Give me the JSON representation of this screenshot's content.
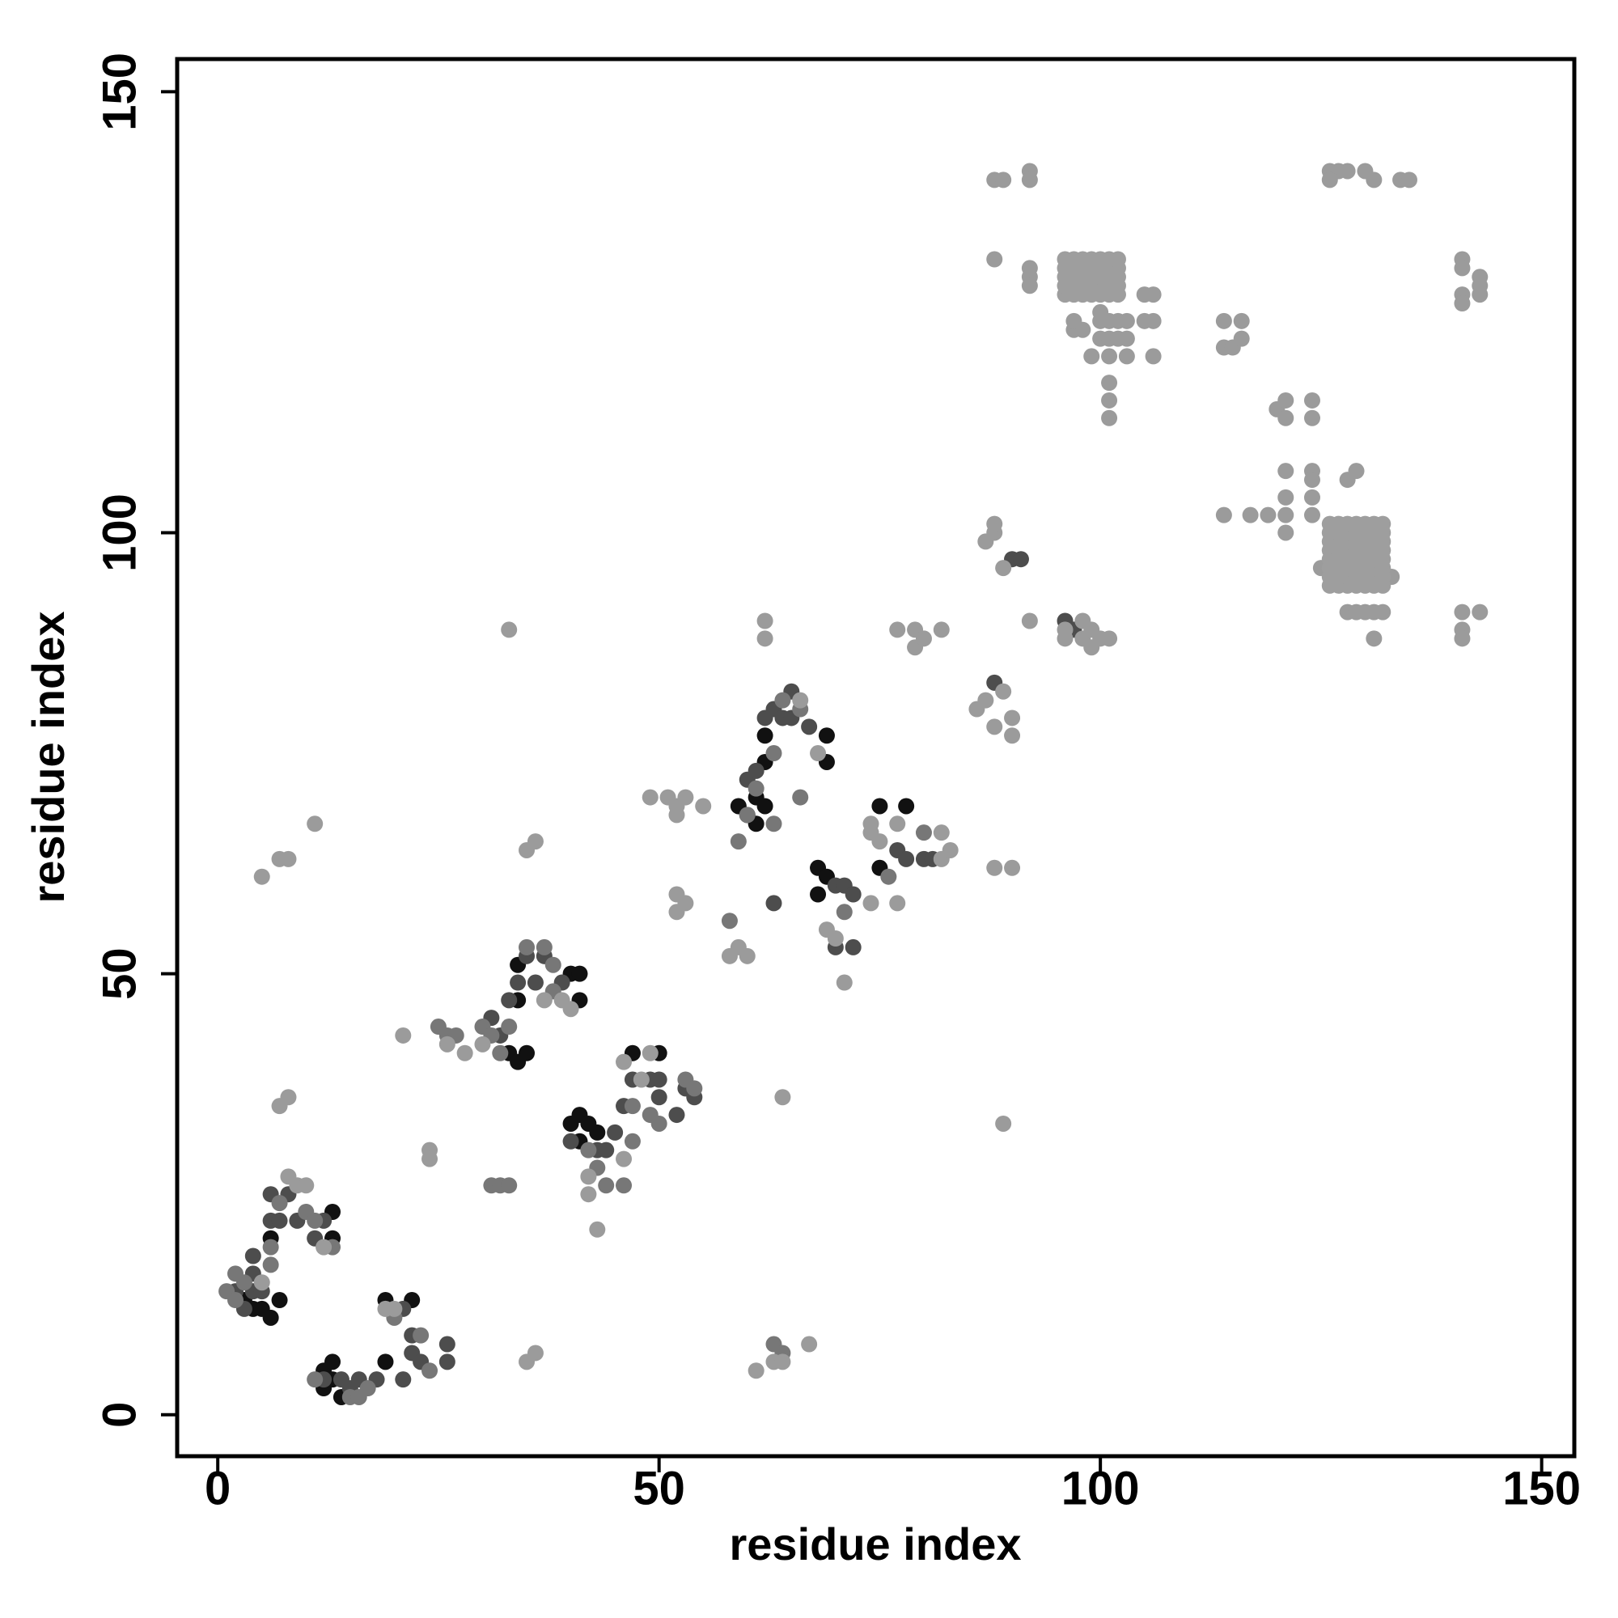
{
  "chart_data": {
    "type": "scatter",
    "xlabel": "residue index",
    "ylabel": "residue index",
    "xlim": [
      -4.6,
      153.7
    ],
    "ylim": [
      -4.7,
      153.7
    ],
    "xticks": [
      0,
      50,
      100,
      150
    ],
    "yticks": [
      0,
      50,
      100,
      150
    ],
    "series": [
      {
        "color": "#111111",
        "x": [
          4,
          5,
          6,
          3,
          7,
          12,
          13,
          13,
          12,
          14,
          19,
          22,
          19,
          6,
          13,
          13,
          40,
          41,
          42,
          43,
          41,
          47,
          50,
          33,
          34,
          35,
          40,
          41,
          41,
          34,
          34,
          62,
          61,
          60,
          61,
          62,
          62,
          69,
          69,
          75,
          78,
          75,
          68,
          69,
          68,
          59
        ],
        "y": [
          12,
          12,
          11,
          13,
          13,
          5,
          6,
          4,
          3,
          2,
          13,
          13,
          6,
          20,
          23,
          20,
          33,
          34,
          33,
          32,
          31,
          41,
          41,
          41,
          40,
          41,
          50,
          50,
          47,
          51,
          47,
          69,
          70,
          68,
          67,
          74,
          77,
          77,
          74,
          69,
          69,
          62,
          62,
          61,
          59,
          69
        ]
      },
      {
        "color": "#4d4d4d",
        "x": [
          2,
          3,
          4,
          5,
          4,
          4,
          6,
          6,
          7,
          8,
          9,
          11,
          12,
          12,
          14,
          15,
          16,
          18,
          21,
          21,
          22,
          22,
          23,
          26,
          26,
          33,
          34,
          35,
          36,
          37,
          39,
          32,
          31,
          40,
          43,
          44,
          45,
          46,
          47,
          49,
          50,
          50,
          52,
          53,
          54,
          60,
          61,
          62,
          63,
          64,
          65,
          65,
          67,
          63,
          70,
          71,
          72,
          72,
          70,
          77,
          78,
          80,
          81,
          90,
          91,
          88,
          96,
          97
        ],
        "y": [
          14,
          12,
          14,
          14,
          16,
          18,
          22,
          25,
          22,
          25,
          22,
          20,
          22,
          4,
          4,
          3,
          4,
          4,
          4,
          12,
          9,
          7,
          6,
          6,
          8,
          47,
          49,
          52,
          49,
          52,
          49,
          43,
          45,
          31,
          30,
          30,
          32,
          35,
          38,
          38,
          36,
          38,
          34,
          37,
          36,
          72,
          73,
          79,
          80,
          79,
          79,
          82,
          78,
          58,
          60,
          60,
          59,
          53,
          53,
          64,
          63,
          63,
          63,
          97,
          97,
          83,
          90,
          89
        ]
      },
      {
        "color": "#777777",
        "x": [
          1,
          2,
          3,
          2,
          6,
          6,
          7,
          10,
          11,
          13,
          11,
          15,
          16,
          17,
          20,
          23,
          24,
          25,
          26,
          27,
          30,
          31,
          32,
          33,
          31,
          32,
          33,
          35,
          37,
          38,
          38,
          42,
          43,
          44,
          46,
          47,
          47,
          49,
          50,
          53,
          54,
          59,
          60,
          61,
          63,
          64,
          66,
          63,
          66,
          63,
          64,
          58,
          76,
          80,
          71
        ],
        "y": [
          14,
          13,
          15,
          16,
          17,
          19,
          24,
          23,
          22,
          19,
          4,
          2,
          2,
          3,
          11,
          9,
          5,
          44,
          43,
          43,
          44,
          43,
          41,
          44,
          26,
          26,
          26,
          53,
          53,
          51,
          48,
          30,
          28,
          26,
          26,
          31,
          35,
          34,
          33,
          38,
          37,
          65,
          68,
          71,
          75,
          81,
          80,
          67,
          70,
          8,
          7,
          56,
          61,
          66,
          57
        ]
      },
      {
        "color": "#9b9b9b",
        "x": [
          5,
          7,
          8,
          11,
          7,
          8,
          5,
          9,
          10,
          8,
          12,
          19,
          20,
          24,
          24,
          26,
          28,
          21,
          35,
          36,
          33,
          35,
          36,
          30,
          37,
          39,
          40,
          42,
          42,
          43,
          46,
          46,
          49,
          48,
          49,
          51,
          52,
          52,
          53,
          55,
          52,
          53,
          52,
          58,
          59,
          60,
          61,
          62,
          62,
          63,
          64,
          64,
          67,
          66,
          68,
          69,
          70,
          71,
          74,
          74,
          75,
          74,
          77,
          77,
          77,
          79,
          79,
          80,
          82,
          82,
          82,
          83,
          86,
          87,
          88,
          90,
          90,
          89,
          88,
          90,
          87,
          88,
          88,
          89,
          88,
          89,
          88,
          92,
          92,
          92,
          92,
          92,
          89,
          97,
          98,
          97,
          100,
          101,
          102,
          103,
          100,
          101,
          102,
          103,
          100,
          99,
          101,
          103,
          101,
          101,
          101,
          105,
          106,
          105,
          106,
          106,
          114,
          116,
          114,
          115,
          116,
          120,
          121,
          121,
          124,
          124,
          141,
          141,
          141,
          143,
          143,
          143,
          141,
          126,
          127,
          128,
          126,
          130,
          131,
          134,
          135,
          124,
          121,
          121,
          121,
          121,
          124,
          124,
          124,
          128,
          129,
          125,
          128,
          129,
          130,
          131,
          132,
          133,
          131,
          114,
          117,
          119,
          141,
          143,
          141,
          141,
          96,
          98,
          99,
          100,
          101,
          96,
          98,
          92,
          99
        ],
        "y": [
          61,
          63,
          63,
          67,
          35,
          36,
          15,
          26,
          26,
          27,
          19,
          12,
          12,
          30,
          29,
          42,
          41,
          43,
          64,
          65,
          89,
          6,
          7,
          42,
          47,
          47,
          46,
          25,
          27,
          21,
          29,
          40,
          41,
          38,
          70,
          70,
          69,
          68,
          70,
          69,
          59,
          58,
          57,
          52,
          53,
          52,
          5,
          90,
          88,
          6,
          6,
          36,
          8,
          81,
          75,
          55,
          54,
          49,
          67,
          66,
          65,
          58,
          58,
          67,
          89,
          89,
          87,
          88,
          89,
          66,
          63,
          64,
          80,
          81,
          78,
          79,
          77,
          82,
          62,
          62,
          99,
          100,
          101,
          96,
          140,
          140,
          131,
          141,
          140,
          130,
          129,
          128,
          33,
          123,
          123,
          124,
          122,
          122,
          122,
          122,
          124,
          124,
          124,
          124,
          125,
          120,
          120,
          120,
          117,
          115,
          113,
          127,
          127,
          124,
          124,
          120,
          124,
          124,
          121,
          121,
          122,
          114,
          113,
          115,
          115,
          113,
          131,
          130,
          127,
          127,
          128,
          129,
          126,
          141,
          141,
          141,
          140,
          141,
          140,
          140,
          140,
          102,
          102,
          100,
          104,
          107,
          104,
          107,
          106,
          106,
          107,
          96,
          91,
          91,
          91,
          91,
          91,
          95,
          88,
          102,
          102,
          102,
          91,
          91,
          89,
          88,
          88,
          88,
          87,
          88,
          88,
          89,
          90,
          90,
          89
        ]
      },
      {
        "color": "#9e9e9e",
        "x": [
          96,
          97,
          98,
          99,
          100,
          101,
          102,
          96,
          97,
          98,
          99,
          100,
          101,
          102,
          96,
          97,
          98,
          99,
          100,
          101,
          102,
          96,
          97,
          98,
          99,
          100,
          101,
          102,
          96,
          97,
          98,
          99,
          100,
          101,
          102
        ],
        "y": [
          127,
          127,
          127,
          127,
          127,
          127,
          127,
          128,
          128,
          128,
          128,
          128,
          128,
          128,
          129,
          129,
          129,
          129,
          129,
          129,
          129,
          130,
          130,
          130,
          130,
          130,
          130,
          130,
          131,
          131,
          131,
          131,
          131,
          131,
          131
        ]
      },
      {
        "color": "#9e9e9e",
        "x": [
          126,
          127,
          128,
          129,
          130,
          131,
          132,
          126,
          127,
          128,
          129,
          130,
          131,
          132,
          126,
          127,
          128,
          129,
          130,
          131,
          132,
          126,
          127,
          128,
          129,
          130,
          131,
          132,
          126,
          127,
          128,
          129,
          130,
          131,
          132,
          126,
          127,
          128,
          129,
          130,
          131,
          132,
          126,
          127,
          128,
          129,
          130,
          131,
          132,
          126,
          127,
          128,
          129,
          130,
          131,
          132
        ],
        "y": [
          94,
          94,
          94,
          94,
          94,
          94,
          94,
          95,
          95,
          95,
          95,
          95,
          95,
          95,
          96,
          96,
          96,
          96,
          96,
          96,
          96,
          97,
          97,
          97,
          97,
          97,
          97,
          97,
          98,
          98,
          98,
          98,
          98,
          98,
          98,
          99,
          99,
          99,
          99,
          99,
          99,
          99,
          100,
          100,
          100,
          100,
          100,
          100,
          100,
          101,
          101,
          101,
          101,
          101,
          101,
          101
        ]
      }
    ]
  }
}
